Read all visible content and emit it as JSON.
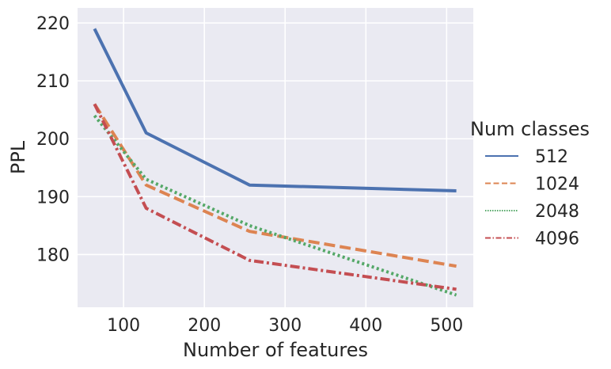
{
  "chart_data": {
    "type": "line",
    "title": "",
    "xlabel": "Number of features",
    "ylabel": "PPL",
    "x": [
      64,
      128,
      256,
      512
    ],
    "xlim": [
      43,
      533
    ],
    "ylim": [
      170.9,
      222.6
    ],
    "xticks": [
      100,
      200,
      300,
      400,
      500
    ],
    "yticks": [
      180,
      190,
      200,
      210,
      220
    ],
    "grid": true,
    "background": "#EAEAF2",
    "legend": {
      "title": "Num classes",
      "placement": "right"
    },
    "series": [
      {
        "name": "512",
        "values": [
          219,
          201,
          192,
          191
        ],
        "color": "#4C72B0",
        "dash": "solid"
      },
      {
        "name": "1024",
        "values": [
          206,
          192,
          184,
          178
        ],
        "color": "#DD8452",
        "dash": "dashed"
      },
      {
        "name": "2048",
        "values": [
          204,
          193,
          185,
          173
        ],
        "color": "#55A868",
        "dash": "dotted"
      },
      {
        "name": "4096",
        "values": [
          206,
          188,
          179,
          174
        ],
        "color": "#C44E52",
        "dash": "dashdot"
      }
    ]
  }
}
